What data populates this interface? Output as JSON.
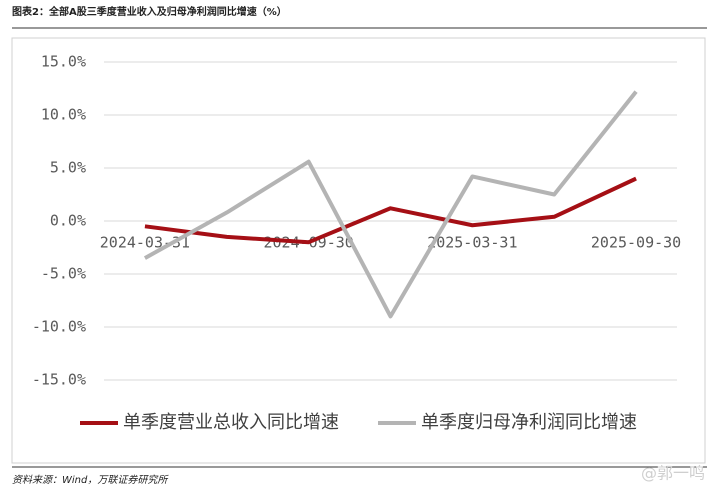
{
  "header": {
    "title": "图表2：全部A股三季度营业收入及归母净利润同比增速（%）"
  },
  "footer": {
    "source": "资料来源：Wind，万联证券研究所",
    "watermark": "@郭一鸣"
  },
  "chart_data": {
    "type": "line",
    "categories": [
      "2024-03-31",
      null,
      "2024-09-30",
      null,
      "2025-03-31",
      null,
      "2025-09-30"
    ],
    "series": [
      {
        "name": "单季度营业总收入同比增速",
        "color": "#a50f15",
        "values": [
          -0.5,
          -1.5,
          -2.0,
          1.2,
          -0.4,
          0.4,
          4.0
        ]
      },
      {
        "name": "单季度归母净利润同比增速",
        "color": "#b4b4b4",
        "values": [
          -3.5,
          0.8,
          5.6,
          -9.0,
          4.2,
          2.5,
          12.2
        ]
      }
    ],
    "ylim": [
      -15,
      15
    ],
    "yticks": [
      {
        "value": -15,
        "label": "-15.0%"
      },
      {
        "value": -10,
        "label": "-10.0%"
      },
      {
        "value": -5,
        "label": "-5.0%"
      },
      {
        "value": 0,
        "label": "0.0%"
      },
      {
        "value": 5,
        "label": "5.0%"
      },
      {
        "value": 10,
        "label": "10.0%"
      },
      {
        "value": 15,
        "label": "15.0%"
      }
    ],
    "grid": true,
    "legend": "bottom"
  }
}
